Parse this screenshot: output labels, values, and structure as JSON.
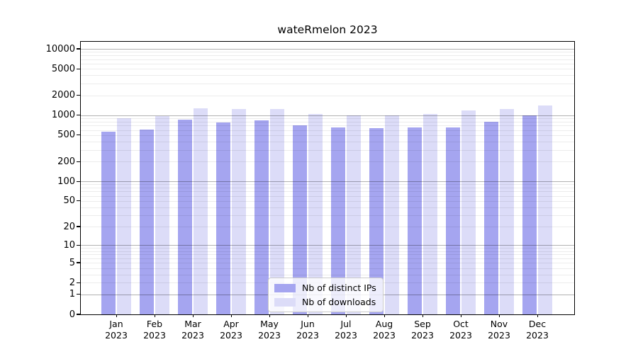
{
  "title": "wateRmelon 2023",
  "chart_data": {
    "type": "bar",
    "title": "wateRmelon 2023",
    "xlabel": "",
    "ylabel": "",
    "yscale": "log1p",
    "grid": true,
    "legend_position": "lower center",
    "ylim": [
      0,
      12800
    ],
    "yticks": [
      0,
      1,
      2,
      5,
      10,
      20,
      50,
      100,
      200,
      500,
      1000,
      2000,
      5000,
      10000
    ],
    "categories": [
      "Jan 2023",
      "Feb 2023",
      "Mar 2023",
      "Apr 2023",
      "May 2023",
      "Jun 2023",
      "Jul 2023",
      "Aug 2023",
      "Sep 2023",
      "Oct 2023",
      "Nov 2023",
      "Dec 2023"
    ],
    "series": [
      {
        "name": "Nb of distinct IPs",
        "color": "#a5a5f0",
        "values": [
          560,
          605,
          850,
          780,
          840,
          710,
          655,
          640,
          655,
          655,
          805,
          1000
        ]
      },
      {
        "name": "Nb of downloads",
        "color": "#dcdcf8",
        "values": [
          910,
          970,
          1280,
          1240,
          1240,
          1050,
          1000,
          985,
          1050,
          1185,
          1240,
          1400
        ]
      }
    ]
  }
}
